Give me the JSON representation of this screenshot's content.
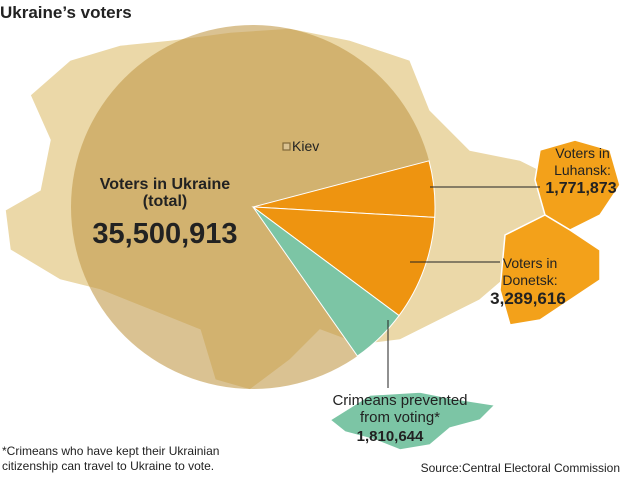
{
  "chart_data": {
    "type": "pie",
    "title": "Ukraine’s voters",
    "total": {
      "name": "Voters in Ukraine (total)",
      "value": 35500913,
      "value_label": "35,500,913",
      "color": "#c29a4a"
    },
    "categories": [
      "Voters in Luhansk:",
      "Voters in Donetsk:",
      "Crimeans prevented from voting*"
    ],
    "values": [
      1771873,
      3289616,
      1810644
    ],
    "value_labels": [
      "1,771,873",
      "3,289,616",
      "1,810,644"
    ],
    "colors": [
      "#ee9410",
      "#ee9410",
      "#7cc5a5"
    ]
  },
  "map_label": "Kiev",
  "footnote": "*Crimeans who have kept their Ukrainian citizenship can travel to Ukraine to vote.",
  "source": "Source:Central Electoral Commission"
}
